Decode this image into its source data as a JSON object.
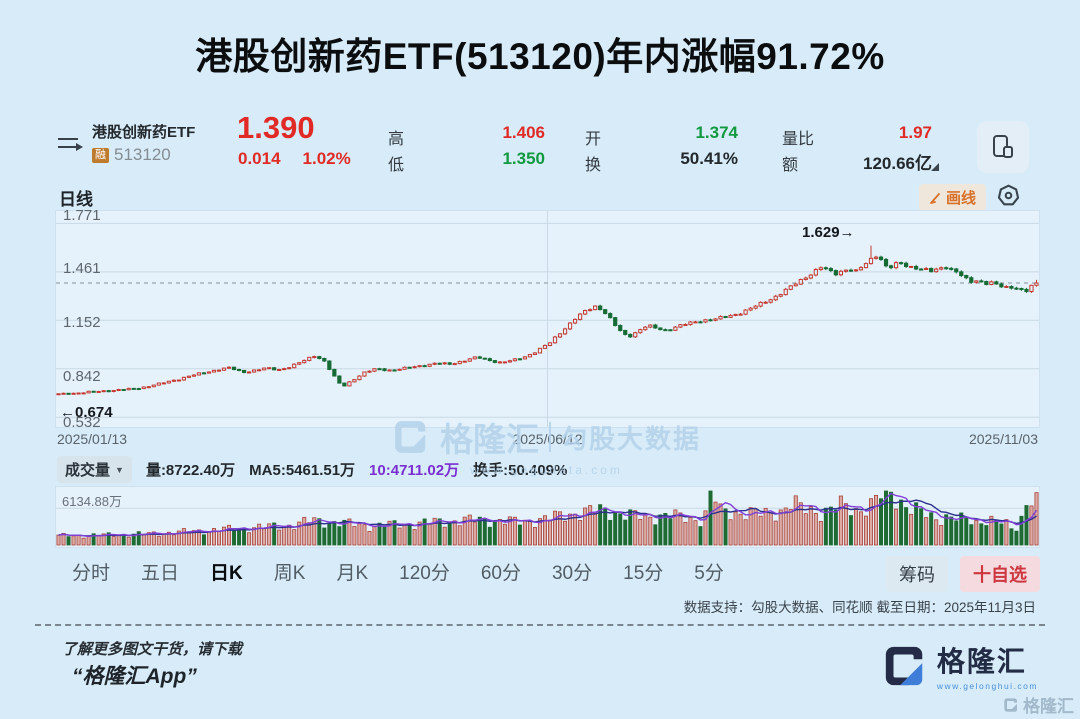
{
  "page": {
    "title": "港股创新药ETF(513120)年内涨幅91.72%"
  },
  "quote": {
    "name": "港股创新药ETF",
    "margin_badge": "融",
    "code": "513120",
    "price": "1.390",
    "change": "0.014",
    "change_pct": "1.02%",
    "fields": [
      {
        "label": "高",
        "value": "1.406",
        "color": "red"
      },
      {
        "label": "低",
        "value": "1.350",
        "color": "green"
      },
      {
        "label": "开",
        "value": "1.374",
        "color": "green"
      },
      {
        "label": "换",
        "value": "50.41%",
        "color": "dark"
      },
      {
        "label": "量比",
        "value": "1.97",
        "color": "red"
      },
      {
        "label": "额",
        "value": "120.66亿",
        "color": "dark"
      }
    ]
  },
  "toolbar": {
    "period_label": "日线",
    "draw_button": "画线"
  },
  "chart_data": {
    "type": "candlestick",
    "title": "港股创新药ETF(513120) 日线",
    "x_axis": {
      "labels": [
        "2025/01/13",
        "2025/06/12",
        "2025/11/03"
      ]
    },
    "y_axis": {
      "ticks": [
        1.771,
        1.461,
        1.152,
        0.842,
        0.532
      ],
      "range": [
        0.47,
        1.85
      ]
    },
    "annotations": {
      "year_high_label": "1.629→",
      "year_low_label": "←0.674",
      "year_high": 1.629,
      "year_high_frac": 0.83,
      "year_low": 0.674,
      "last_price_line": 1.39
    },
    "candle_count": 196,
    "colors": {
      "up": "#c43a32",
      "up_fill": "#e6f2fb",
      "down": "#166b35",
      "vol_up_fill": "#dcaaa2",
      "vol_up_stroke": "#a8433b",
      "vol_down": "#1e6b33",
      "ma5": "#8040d8",
      "ma10": "#2c2f8e",
      "grid": "#c9d9e6",
      "dash_line": "#99a5ae"
    },
    "price_anchors": [
      [
        0.0,
        0.68
      ],
      [
        0.015,
        0.686
      ],
      [
        0.03,
        0.692
      ],
      [
        0.045,
        0.7
      ],
      [
        0.06,
        0.706
      ],
      [
        0.075,
        0.713
      ],
      [
        0.09,
        0.728
      ],
      [
        0.105,
        0.748
      ],
      [
        0.12,
        0.772
      ],
      [
        0.135,
        0.797
      ],
      [
        0.15,
        0.818
      ],
      [
        0.163,
        0.838
      ],
      [
        0.175,
        0.848
      ],
      [
        0.188,
        0.82
      ],
      [
        0.2,
        0.832
      ],
      [
        0.212,
        0.845
      ],
      [
        0.225,
        0.836
      ],
      [
        0.238,
        0.858
      ],
      [
        0.25,
        0.89
      ],
      [
        0.262,
        0.928
      ],
      [
        0.272,
        0.89
      ],
      [
        0.282,
        0.79
      ],
      [
        0.29,
        0.725
      ],
      [
        0.3,
        0.768
      ],
      [
        0.312,
        0.815
      ],
      [
        0.325,
        0.842
      ],
      [
        0.34,
        0.833
      ],
      [
        0.355,
        0.845
      ],
      [
        0.37,
        0.862
      ],
      [
        0.385,
        0.875
      ],
      [
        0.4,
        0.872
      ],
      [
        0.415,
        0.895
      ],
      [
        0.428,
        0.915
      ],
      [
        0.44,
        0.898
      ],
      [
        0.452,
        0.882
      ],
      [
        0.465,
        0.895
      ],
      [
        0.478,
        0.922
      ],
      [
        0.49,
        0.958
      ],
      [
        0.502,
        1.005
      ],
      [
        0.515,
        1.085
      ],
      [
        0.528,
        1.16
      ],
      [
        0.54,
        1.215
      ],
      [
        0.55,
        1.245
      ],
      [
        0.56,
        1.195
      ],
      [
        0.572,
        1.095
      ],
      [
        0.582,
        1.045
      ],
      [
        0.592,
        1.082
      ],
      [
        0.602,
        1.118
      ],
      [
        0.612,
        1.098
      ],
      [
        0.622,
        1.088
      ],
      [
        0.632,
        1.112
      ],
      [
        0.645,
        1.132
      ],
      [
        0.658,
        1.152
      ],
      [
        0.67,
        1.158
      ],
      [
        0.682,
        1.172
      ],
      [
        0.695,
        1.195
      ],
      [
        0.708,
        1.228
      ],
      [
        0.72,
        1.262
      ],
      [
        0.732,
        1.3
      ],
      [
        0.744,
        1.345
      ],
      [
        0.755,
        1.39
      ],
      [
        0.764,
        1.428
      ],
      [
        0.772,
        1.462
      ],
      [
        0.78,
        1.492
      ],
      [
        0.787,
        1.468
      ],
      [
        0.794,
        1.448
      ],
      [
        0.801,
        1.468
      ],
      [
        0.808,
        1.482
      ],
      [
        0.815,
        1.462
      ],
      [
        0.822,
        1.492
      ],
      [
        0.829,
        1.532
      ],
      [
        0.836,
        1.568
      ],
      [
        0.842,
        1.54
      ],
      [
        0.848,
        1.478
      ],
      [
        0.855,
        1.508
      ],
      [
        0.862,
        1.512
      ],
      [
        0.87,
        1.495
      ],
      [
        0.878,
        1.488
      ],
      [
        0.886,
        1.475
      ],
      [
        0.893,
        1.462
      ],
      [
        0.9,
        1.478
      ],
      [
        0.907,
        1.498
      ],
      [
        0.913,
        1.478
      ],
      [
        0.92,
        1.458
      ],
      [
        0.927,
        1.415
      ],
      [
        0.933,
        1.395
      ],
      [
        0.94,
        1.408
      ],
      [
        0.947,
        1.39
      ],
      [
        0.953,
        1.398
      ],
      [
        0.96,
        1.375
      ],
      [
        0.966,
        1.362
      ],
      [
        0.972,
        1.355
      ],
      [
        0.978,
        1.368
      ],
      [
        0.984,
        1.348
      ],
      [
        0.99,
        1.342
      ],
      [
        0.995,
        1.372
      ],
      [
        1.0,
        1.39
      ]
    ],
    "volume": {
      "unit": "万",
      "scale_line": 6134.88,
      "max": 9000,
      "last": 8722.4,
      "anchors": [
        [
          0.0,
          1500
        ],
        [
          0.05,
          1650
        ],
        [
          0.1,
          1900
        ],
        [
          0.15,
          2400
        ],
        [
          0.2,
          2900
        ],
        [
          0.24,
          3300
        ],
        [
          0.26,
          4100
        ],
        [
          0.29,
          3600
        ],
        [
          0.32,
          3200
        ],
        [
          0.36,
          3500
        ],
        [
          0.4,
          4000
        ],
        [
          0.44,
          4200
        ],
        [
          0.47,
          3800
        ],
        [
          0.5,
          4400
        ],
        [
          0.53,
          5400
        ],
        [
          0.56,
          5800
        ],
        [
          0.58,
          5000
        ],
        [
          0.6,
          4600
        ],
        [
          0.62,
          5000
        ],
        [
          0.645,
          4400
        ],
        [
          0.66,
          4200
        ],
        [
          0.668,
          9400
        ],
        [
          0.676,
          5600
        ],
        [
          0.7,
          5400
        ],
        [
          0.72,
          5100
        ],
        [
          0.74,
          5800
        ],
        [
          0.75,
          7000
        ],
        [
          0.76,
          6000
        ],
        [
          0.78,
          5500
        ],
        [
          0.8,
          6500
        ],
        [
          0.815,
          5800
        ],
        [
          0.83,
          6600
        ],
        [
          0.84,
          8000
        ],
        [
          0.85,
          8800
        ],
        [
          0.86,
          7500
        ],
        [
          0.87,
          6300
        ],
        [
          0.88,
          5500
        ],
        [
          0.89,
          4700
        ],
        [
          0.9,
          4400
        ],
        [
          0.91,
          4900
        ],
        [
          0.92,
          4300
        ],
        [
          0.93,
          4000
        ],
        [
          0.94,
          3700
        ],
        [
          0.95,
          4500
        ],
        [
          0.96,
          3900
        ],
        [
          0.97,
          3300
        ],
        [
          0.975,
          2500
        ],
        [
          0.982,
          3100
        ],
        [
          0.99,
          7600
        ],
        [
          1.0,
          8722.4
        ]
      ]
    }
  },
  "volume_bar": {
    "indicator": "成交量",
    "vol_label": "量:8722.40万",
    "ma5_label": "MA5:5461.51万",
    "ma10_label": "10:4711.02万",
    "turnover_label": "换手:50.409%",
    "scale_label": "6134.88万"
  },
  "tabs": {
    "items": [
      "分时",
      "五日",
      "日K",
      "周K",
      "月K",
      "120分",
      "60分",
      "30分",
      "15分",
      "5分"
    ],
    "active": "日K",
    "chips": [
      "筹码",
      "十自选"
    ]
  },
  "source_note": "数据支持：勾股大数据、同花顺 截至日期：2025年11月3日",
  "footer": {
    "line1": "了解更多图文干货，请下载",
    "line2": "“格隆汇App”",
    "brand": "格隆汇",
    "brand_url": "www.gelonghui.com"
  },
  "watermark": {
    "brand": "格隆汇",
    "partner": "勾股大数据",
    "url": "www.gogudata.com"
  }
}
